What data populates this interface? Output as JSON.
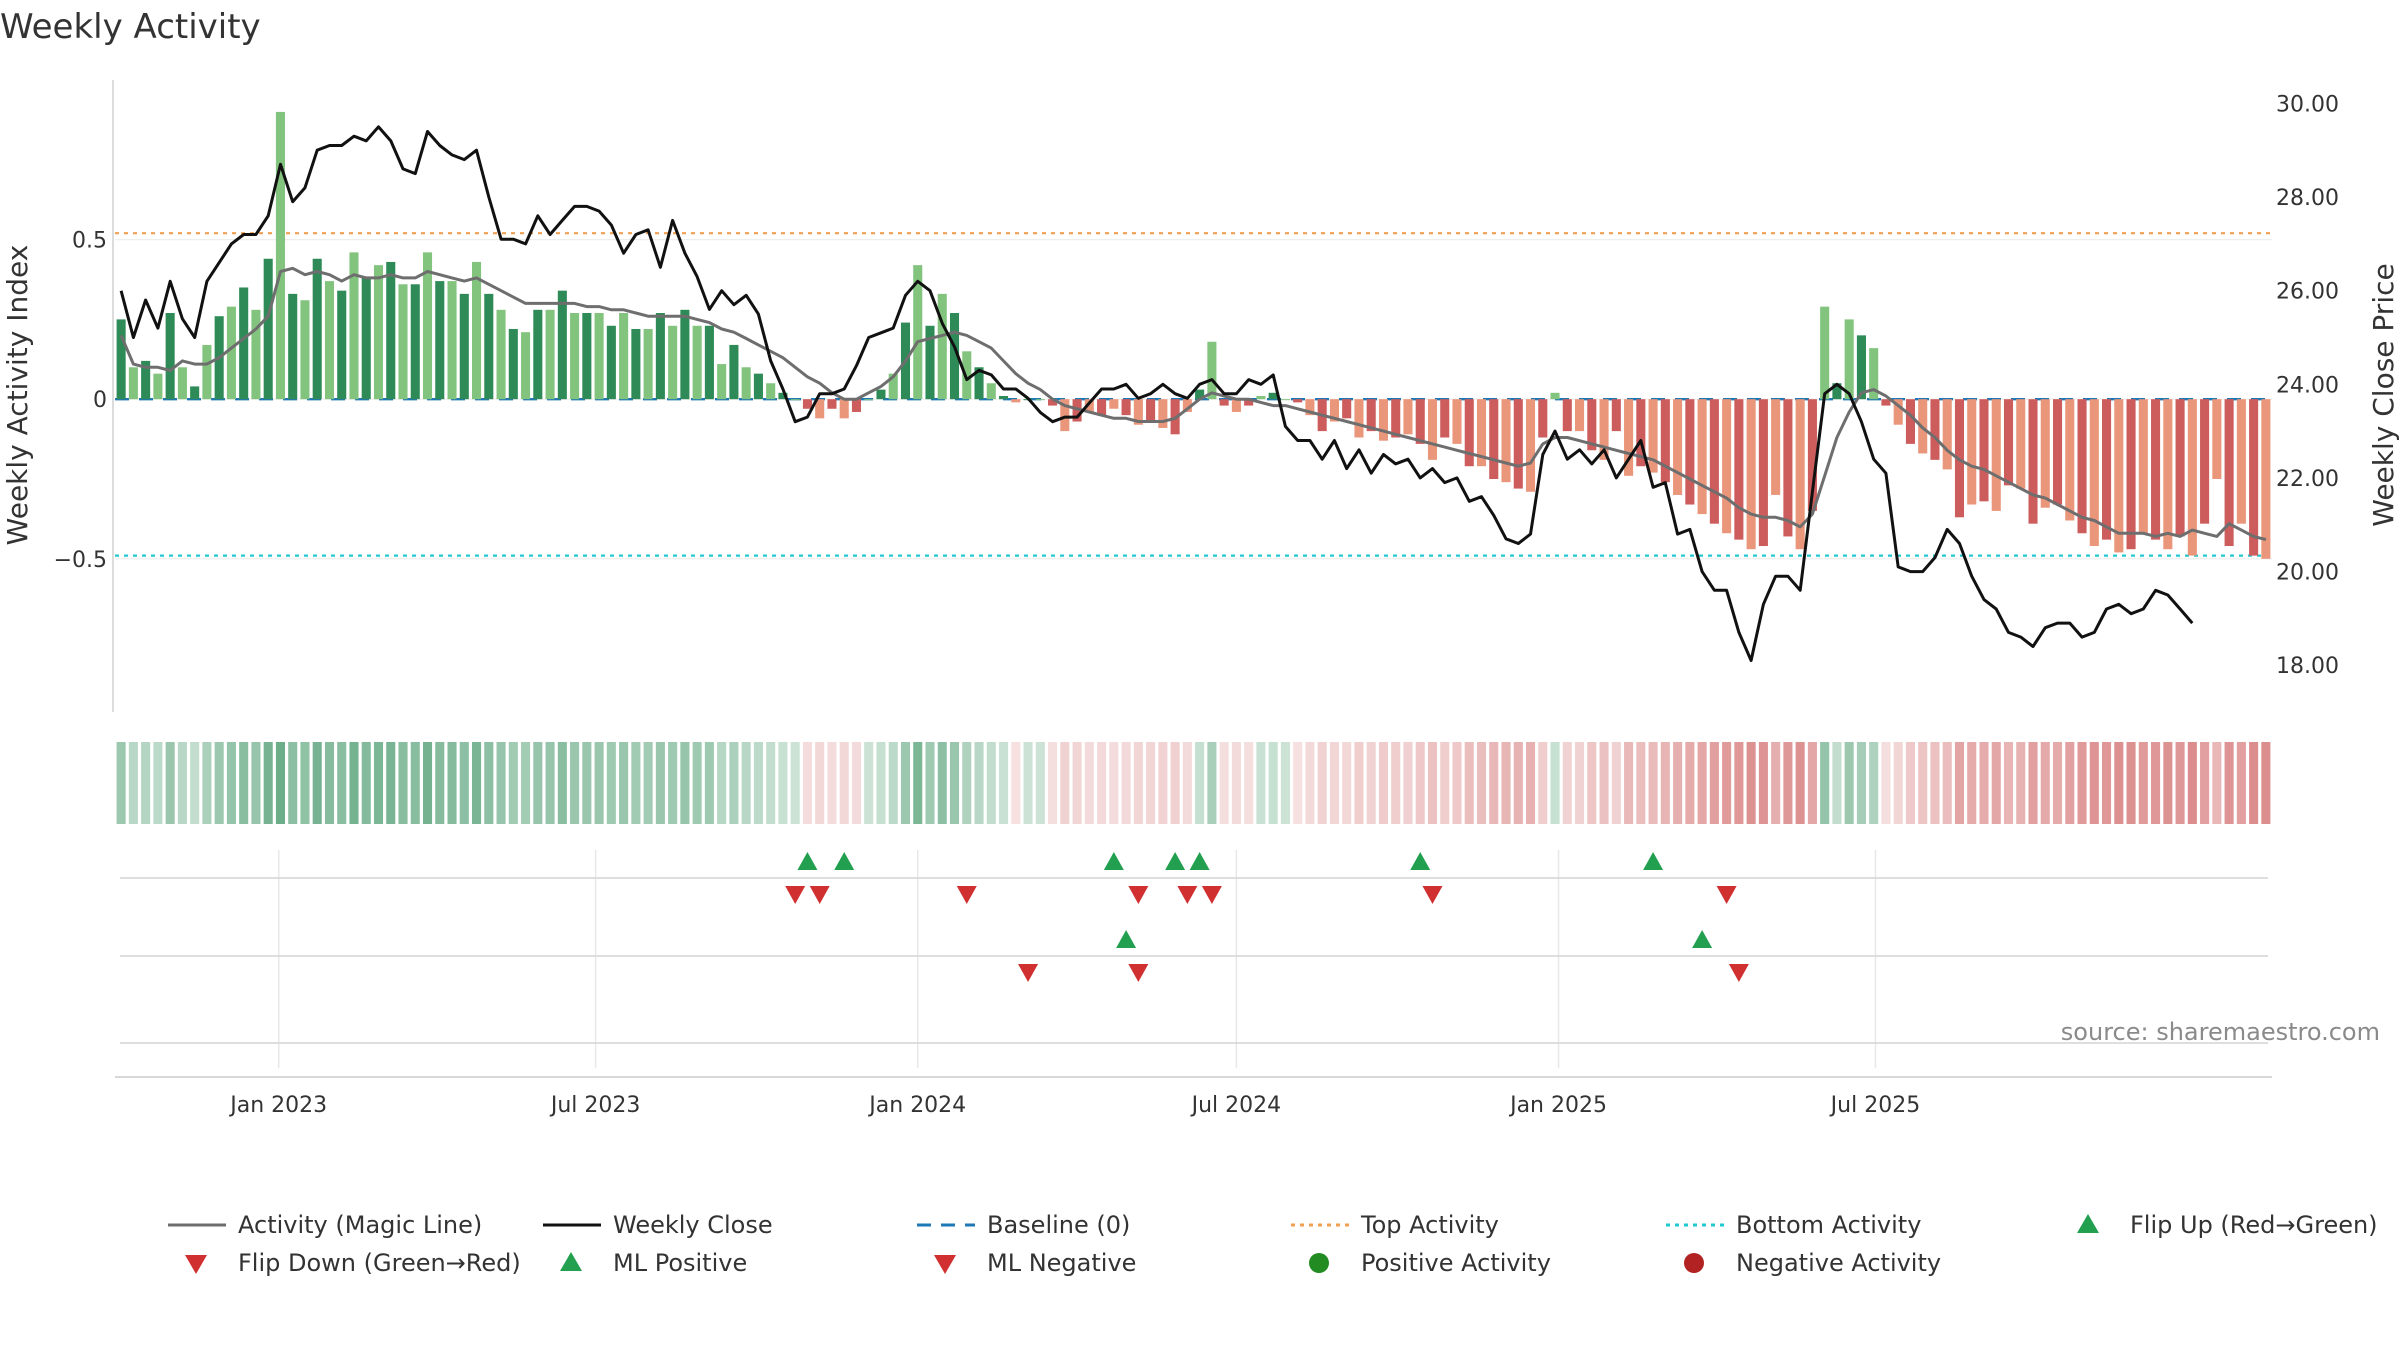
{
  "chart_data": {
    "type": "bar+line",
    "title": "Weekly Activity",
    "ylabel_left": "Weekly Activity Index",
    "ylabel_right": "Weekly Close Price",
    "source": "source: sharemaestro.com",
    "left_ylim": [
      -0.98,
      1.0
    ],
    "right_ylim": [
      17.0,
      30.5
    ],
    "left_ticks": [
      {
        "v": 0.5,
        "label": "0.5"
      },
      {
        "v": 0,
        "label": "0"
      },
      {
        "v": -0.5,
        "label": "−0.5"
      }
    ],
    "right_ticks": [
      {
        "v": 30,
        "label": "30.00"
      },
      {
        "v": 28,
        "label": "28.00"
      },
      {
        "v": 26,
        "label": "26.00"
      },
      {
        "v": 24,
        "label": "24.00"
      },
      {
        "v": 22,
        "label": "22.00"
      },
      {
        "v": 20,
        "label": "20.00"
      },
      {
        "v": 18,
        "label": "18.00"
      }
    ],
    "x_start": "2022-10-03",
    "x_ticks": [
      "Jan 2023",
      "Jul 2023",
      "Jan 2024",
      "Jul 2024",
      "Jan 2025",
      "Jul 2025"
    ],
    "top_activity": 0.52,
    "bottom_activity": -0.49,
    "baseline": 0,
    "colors": {
      "pos_strong": "#2e8b57",
      "pos_light": "#82c47e",
      "neg_strong": "#cd5c5c",
      "neg_light": "#e9967a",
      "magic_line": "#6e6e6e",
      "close_line": "#111111",
      "baseline": "#1f77b4",
      "top": "#f0a050",
      "bottom": "#20c8d0",
      "up_marker": "#22a050",
      "down_marker": "#d03030",
      "pos_dot": "#228b22",
      "neg_dot": "#b22222"
    },
    "activity": [
      0.25,
      0.1,
      0.12,
      0.08,
      0.27,
      0.1,
      0.04,
      0.17,
      0.26,
      0.29,
      0.35,
      0.28,
      0.44,
      0.9,
      0.33,
      0.31,
      0.44,
      0.37,
      0.34,
      0.46,
      0.38,
      0.42,
      0.43,
      0.36,
      0.36,
      0.46,
      0.37,
      0.37,
      0.33,
      0.43,
      0.33,
      0.28,
      0.22,
      0.21,
      0.28,
      0.28,
      0.34,
      0.27,
      0.27,
      0.27,
      0.23,
      0.27,
      0.22,
      0.22,
      0.27,
      0.23,
      0.28,
      0.23,
      0.23,
      0.11,
      0.17,
      0.1,
      0.08,
      0.05,
      0.02,
      0.0,
      -0.03,
      -0.06,
      -0.03,
      -0.06,
      -0.04,
      0.0,
      0.03,
      0.08,
      0.24,
      0.42,
      0.23,
      0.33,
      0.27,
      0.15,
      0.1,
      0.05,
      0.01,
      -0.01,
      0.0,
      0.0,
      -0.02,
      -0.1,
      -0.07,
      -0.04,
      -0.05,
      -0.03,
      -0.05,
      -0.08,
      -0.07,
      -0.09,
      -0.11,
      -0.04,
      0.03,
      0.18,
      -0.02,
      -0.04,
      -0.02,
      0.01,
      0.02,
      0.0,
      -0.01,
      -0.05,
      -0.1,
      -0.07,
      -0.06,
      -0.12,
      -0.1,
      -0.13,
      -0.12,
      -0.11,
      -0.14,
      -0.19,
      -0.12,
      -0.14,
      -0.21,
      -0.21,
      -0.25,
      -0.26,
      -0.28,
      -0.29,
      -0.12,
      0.02,
      -0.1,
      -0.1,
      -0.16,
      -0.19,
      -0.1,
      -0.24,
      -0.21,
      -0.23,
      -0.26,
      -0.3,
      -0.33,
      -0.36,
      -0.39,
      -0.42,
      -0.44,
      -0.47,
      -0.46,
      -0.3,
      -0.43,
      -0.47,
      -0.35,
      0.29,
      0.05,
      0.25,
      0.2,
      0.16,
      -0.02,
      -0.08,
      -0.14,
      -0.17,
      -0.19,
      -0.22,
      -0.37,
      -0.33,
      -0.32,
      -0.35,
      -0.27,
      -0.28,
      -0.39,
      -0.34,
      -0.33,
      -0.38,
      -0.42,
      -0.46,
      -0.44,
      -0.48,
      -0.47,
      -0.42,
      -0.44,
      -0.47,
      -0.43,
      -0.49,
      -0.39,
      -0.25,
      -0.46,
      -0.39,
      -0.49,
      -0.5
    ],
    "magic_line": [
      0.2,
      0.11,
      0.1,
      0.1,
      0.09,
      0.12,
      0.11,
      0.11,
      0.13,
      0.16,
      0.19,
      0.22,
      0.26,
      0.4,
      0.41,
      0.39,
      0.4,
      0.39,
      0.37,
      0.39,
      0.38,
      0.38,
      0.39,
      0.38,
      0.38,
      0.4,
      0.39,
      0.38,
      0.37,
      0.38,
      0.36,
      0.34,
      0.32,
      0.3,
      0.3,
      0.3,
      0.3,
      0.3,
      0.29,
      0.29,
      0.28,
      0.28,
      0.27,
      0.26,
      0.26,
      0.26,
      0.26,
      0.25,
      0.24,
      0.22,
      0.21,
      0.19,
      0.17,
      0.15,
      0.13,
      0.1,
      0.07,
      0.05,
      0.02,
      0.0,
      0.0,
      0.02,
      0.04,
      0.07,
      0.12,
      0.18,
      0.19,
      0.2,
      0.21,
      0.2,
      0.18,
      0.16,
      0.12,
      0.08,
      0.05,
      0.03,
      0.0,
      -0.02,
      -0.03,
      -0.04,
      -0.05,
      -0.06,
      -0.06,
      -0.07,
      -0.07,
      -0.07,
      -0.06,
      -0.03,
      0.0,
      0.02,
      0.01,
      0.0,
      0.0,
      -0.01,
      -0.02,
      -0.02,
      -0.03,
      -0.04,
      -0.05,
      -0.06,
      -0.07,
      -0.08,
      -0.09,
      -0.1,
      -0.11,
      -0.12,
      -0.13,
      -0.14,
      -0.15,
      -0.16,
      -0.17,
      -0.18,
      -0.19,
      -0.2,
      -0.21,
      -0.2,
      -0.14,
      -0.12,
      -0.12,
      -0.13,
      -0.14,
      -0.15,
      -0.16,
      -0.17,
      -0.18,
      -0.19,
      -0.21,
      -0.23,
      -0.25,
      -0.27,
      -0.29,
      -0.31,
      -0.34,
      -0.36,
      -0.37,
      -0.37,
      -0.38,
      -0.4,
      -0.36,
      -0.24,
      -0.12,
      -0.04,
      0.02,
      0.03,
      0.01,
      -0.02,
      -0.05,
      -0.09,
      -0.12,
      -0.16,
      -0.19,
      -0.21,
      -0.22,
      -0.24,
      -0.26,
      -0.28,
      -0.3,
      -0.31,
      -0.33,
      -0.35,
      -0.37,
      -0.38,
      -0.4,
      -0.42,
      -0.42,
      -0.42,
      -0.43,
      -0.42,
      -0.43,
      -0.41,
      -0.42,
      -0.43,
      -0.39,
      -0.41,
      -0.43,
      -0.44
    ],
    "weekly_close": [
      26.0,
      25.0,
      25.8,
      25.2,
      26.2,
      25.4,
      25.0,
      26.2,
      26.6,
      27.0,
      27.2,
      27.2,
      27.6,
      28.7,
      27.9,
      28.2,
      29.0,
      29.1,
      29.1,
      29.3,
      29.2,
      29.5,
      29.2,
      28.6,
      28.5,
      29.4,
      29.1,
      28.9,
      28.8,
      29.0,
      28.0,
      27.1,
      27.1,
      27.0,
      27.6,
      27.2,
      27.5,
      27.8,
      27.8,
      27.7,
      27.4,
      26.8,
      27.2,
      27.3,
      26.5,
      27.5,
      26.8,
      26.3,
      25.6,
      26.0,
      25.7,
      25.9,
      25.5,
      24.5,
      23.9,
      23.2,
      23.3,
      23.8,
      23.8,
      23.9,
      24.4,
      25.0,
      25.1,
      25.2,
      25.9,
      26.2,
      26.0,
      25.3,
      24.8,
      24.1,
      24.3,
      24.2,
      23.9,
      23.9,
      23.7,
      23.4,
      23.2,
      23.3,
      23.3,
      23.6,
      23.9,
      23.9,
      24.0,
      23.7,
      23.8,
      24.0,
      23.8,
      23.7,
      24.0,
      24.1,
      23.8,
      23.8,
      24.1,
      24.0,
      24.2,
      23.1,
      22.8,
      22.8,
      22.4,
      22.8,
      22.2,
      22.6,
      22.1,
      22.5,
      22.3,
      22.4,
      22.0,
      22.2,
      21.9,
      22.0,
      21.5,
      21.6,
      21.2,
      20.7,
      20.6,
      20.8,
      22.5,
      23.0,
      22.4,
      22.6,
      22.3,
      22.6,
      22.0,
      22.4,
      22.8,
      21.8,
      21.9,
      20.8,
      20.9,
      20.0,
      19.6,
      19.6,
      18.7,
      18.1,
      19.3,
      19.9,
      19.9,
      19.6,
      21.7,
      23.8,
      24.0,
      23.8,
      23.2,
      22.4,
      22.1,
      20.1,
      20.0,
      20.0,
      20.3,
      20.9,
      20.6,
      19.9,
      19.4,
      19.2,
      18.7,
      18.6,
      18.4,
      18.8,
      18.9,
      18.9,
      18.6,
      18.7,
      19.2,
      19.3,
      19.1,
      19.2,
      19.6,
      19.5,
      19.2,
      18.9
    ],
    "strip_rows": [
      {
        "name": "Flip Up / Flip Down",
        "ups": [
          56,
          59,
          81,
          86,
          88,
          106,
          125
        ],
        "downs": [
          55,
          57,
          69,
          83,
          87,
          89,
          107,
          131
        ]
      },
      {
        "name": "ML Positive / ML Negative",
        "ups": [
          82,
          129
        ],
        "downs": [
          74,
          83,
          132
        ]
      },
      {
        "name": "Activity dots",
        "ups": [],
        "downs": []
      }
    ],
    "legend": [
      {
        "label": "Activity (Magic Line)",
        "kind": "solid-gray"
      },
      {
        "label": "Weekly Close",
        "kind": "solid-black"
      },
      {
        "label": "Baseline (0)",
        "kind": "dashed-blue"
      },
      {
        "label": "Top Activity",
        "kind": "dotted-orange"
      },
      {
        "label": "Bottom Activity",
        "kind": "dotted-cyan"
      },
      {
        "label": "Flip Up (Red→Green)",
        "kind": "triangle-up"
      },
      {
        "label": "Flip Down (Green→Red)",
        "kind": "triangle-down"
      },
      {
        "label": "ML Positive",
        "kind": "triangle-up"
      },
      {
        "label": "ML Negative",
        "kind": "triangle-down"
      },
      {
        "label": "Positive Activity",
        "kind": "dot-green"
      },
      {
        "label": "Negative Activity",
        "kind": "dot-red"
      }
    ]
  }
}
